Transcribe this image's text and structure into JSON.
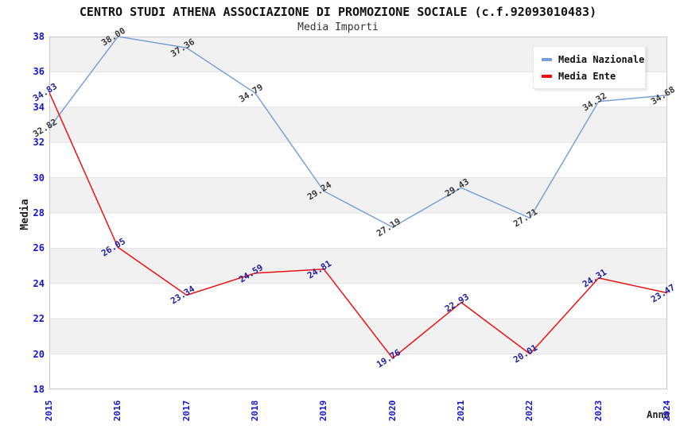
{
  "header": {
    "title": "CENTRO STUDI ATHENA ASSOCIAZIONE DI PROMOZIONE SOCIALE (c.f.92093010483)",
    "subtitle": "Media Importi"
  },
  "chart_data": {
    "type": "line",
    "title": "CENTRO STUDI ATHENA ASSOCIAZIONE DI PROMOZIONE SOCIALE (c.f.92093010483)",
    "subtitle": "Media Importi",
    "xlabel": "Anno",
    "ylabel": "Media",
    "x": [
      "2015",
      "2016",
      "2017",
      "2018",
      "2019",
      "2020",
      "2021",
      "2022",
      "2023",
      "2024"
    ],
    "series": [
      {
        "name": "Media Nazionale",
        "color": "#76A2D8",
        "label_color": "#3A3A3A",
        "values": [
          32.82,
          38.0,
          37.36,
          34.79,
          29.24,
          27.19,
          29.43,
          27.71,
          34.32,
          34.68
        ]
      },
      {
        "name": "Media Ente",
        "color": "#EE1111",
        "label_color": "#2020A0",
        "values": [
          34.83,
          26.05,
          23.34,
          24.59,
          24.81,
          19.76,
          22.93,
          20.01,
          24.31,
          23.47
        ]
      }
    ],
    "ylim": [
      18,
      38
    ],
    "ytick_step": 2,
    "y_ticks": [
      18,
      20,
      22,
      24,
      26,
      28,
      30,
      32,
      34,
      36,
      38
    ],
    "grid": "horizontal gridlines with alternating shaded bands",
    "legend_position": "top-right",
    "style": {
      "tick_label_color": "#1414CC",
      "band_color": "#F1F1F1",
      "gridline_color": "#E3E3E3",
      "border_color": "#C9C9C9"
    }
  }
}
